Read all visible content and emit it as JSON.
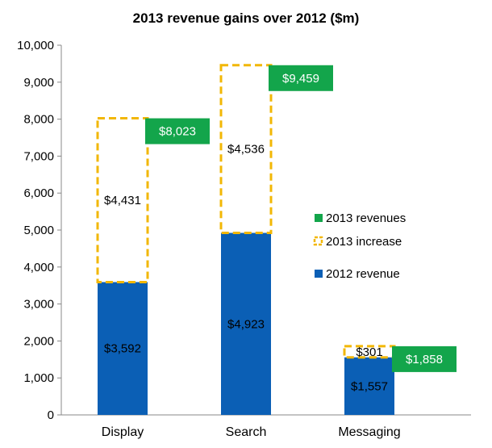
{
  "chart_data": {
    "type": "bar",
    "title": "2013 revenue gains over 2012 ($m)",
    "categories": [
      "Display",
      "Search",
      "Messaging"
    ],
    "ylim": [
      0,
      10000
    ],
    "yticks": [
      0,
      1000,
      2000,
      3000,
      4000,
      5000,
      6000,
      7000,
      8000,
      9000,
      10000
    ],
    "ytick_labels": [
      "0",
      "1,000",
      "2,000",
      "3,000",
      "4,000",
      "5,000",
      "6,000",
      "7,000",
      "8,000",
      "9,000",
      "10,000"
    ],
    "grid": false,
    "legend_position": "right",
    "series": [
      {
        "name": "2012 revenue",
        "values": [
          3592,
          4923,
          1557
        ],
        "labels": [
          "$3,592",
          "$4,923",
          "$1,557"
        ],
        "color": "#0b5fb5"
      },
      {
        "name": "2013 increase",
        "values": [
          4431,
          4536,
          301
        ],
        "labels": [
          "$4,431",
          "$4,536",
          "$301"
        ],
        "color": "#f2b705"
      },
      {
        "name": "2013 revenues",
        "values": [
          8023,
          9459,
          1858
        ],
        "labels": [
          "$8,023",
          "$9,459",
          "$1,858"
        ],
        "color": "#13a54b"
      }
    ]
  }
}
